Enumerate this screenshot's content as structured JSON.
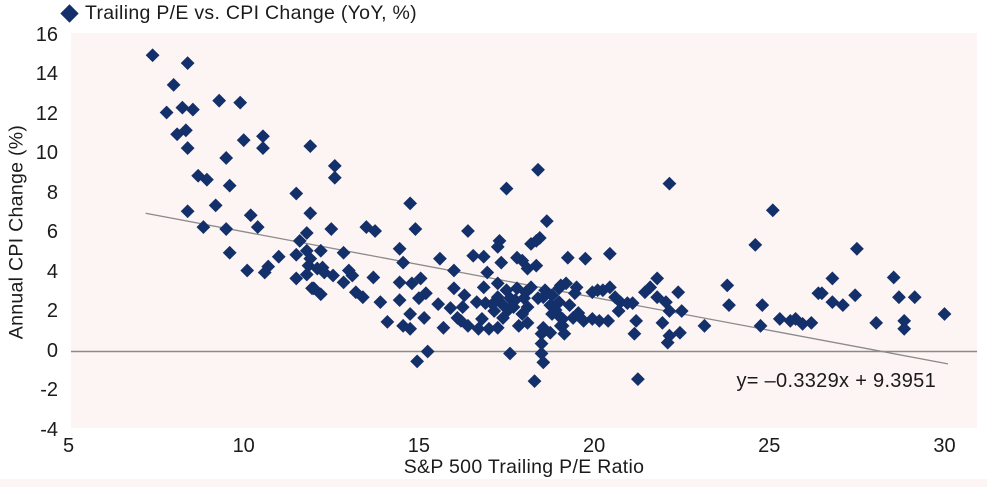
{
  "legend": {
    "label": "Trailing P/E vs. CPI Change (YoY, %)"
  },
  "colors": {
    "point": "#14306a",
    "plot_background": "#fdf5f3",
    "line_gray": "#8a8a8a",
    "text": "#1b1b1b"
  },
  "chart_data": {
    "type": "scatter",
    "title": "Trailing P/E vs. CPI Change (YoY, %)",
    "legend_position": "top-left",
    "grid": false,
    "x_axis": {
      "label": "S&P 500 Trailing P/E Ratio",
      "ticks": [
        5,
        10,
        15,
        20,
        25,
        30
      ],
      "range": [
        5,
        30
      ]
    },
    "y_axis": {
      "label": "Annual CPI Change (%)",
      "ticks": [
        16,
        14,
        12,
        10,
        8,
        6,
        4,
        2,
        0,
        -2,
        -4
      ],
      "range": [
        -4,
        16
      ]
    },
    "zero_line": true,
    "trendline": {
      "slope": -0.3329,
      "intercept": 9.3951,
      "x_start": 7.2,
      "x_end": 30.1,
      "equation_label": "y= –0.3329x + 9.3951"
    },
    "points": [
      [
        7.4,
        15.0
      ],
      [
        8.4,
        14.6
      ],
      [
        8.0,
        13.5
      ],
      [
        9.3,
        12.7
      ],
      [
        9.9,
        12.6
      ],
      [
        7.8,
        12.1
      ],
      [
        8.25,
        12.35
      ],
      [
        8.55,
        12.25
      ],
      [
        8.1,
        11.0
      ],
      [
        8.35,
        11.2
      ],
      [
        8.4,
        10.3
      ],
      [
        10.0,
        10.7
      ],
      [
        10.55,
        10.9
      ],
      [
        10.55,
        10.3
      ],
      [
        9.5,
        9.8
      ],
      [
        11.9,
        10.4
      ],
      [
        8.7,
        8.9
      ],
      [
        8.95,
        8.7
      ],
      [
        9.6,
        8.4
      ],
      [
        11.5,
        8.0
      ],
      [
        8.4,
        7.1
      ],
      [
        9.2,
        7.4
      ],
      [
        10.2,
        6.9
      ],
      [
        10.4,
        6.3
      ],
      [
        8.85,
        6.3
      ],
      [
        9.5,
        6.2
      ],
      [
        11.9,
        7.0
      ],
      [
        11.8,
        6.0
      ],
      [
        11.6,
        5.6
      ],
      [
        11.8,
        5.1
      ],
      [
        11.0,
        4.8
      ],
      [
        11.5,
        4.9
      ],
      [
        9.6,
        5.0
      ],
      [
        10.1,
        4.1
      ],
      [
        10.6,
        4.0
      ],
      [
        10.7,
        4.3
      ],
      [
        11.85,
        4.35
      ],
      [
        12.1,
        4.2
      ],
      [
        11.5,
        3.7
      ],
      [
        11.8,
        3.9
      ],
      [
        11.95,
        3.2
      ],
      [
        12.2,
        2.9
      ],
      [
        12.6,
        9.4
      ],
      [
        12.6,
        8.8
      ],
      [
        12.5,
        6.2
      ],
      [
        12.2,
        5.1
      ],
      [
        11.9,
        4.7
      ],
      [
        12.25,
        4.25
      ],
      [
        12.3,
        4.0
      ],
      [
        12.55,
        3.85
      ],
      [
        12.0,
        3.2
      ],
      [
        12.85,
        5.0
      ],
      [
        13.0,
        4.1
      ],
      [
        13.1,
        3.85
      ],
      [
        12.85,
        3.5
      ],
      [
        13.2,
        3.0
      ],
      [
        13.4,
        2.75
      ],
      [
        13.7,
        3.75
      ],
      [
        13.9,
        2.5
      ],
      [
        13.5,
        6.3
      ],
      [
        13.75,
        6.1
      ],
      [
        14.1,
        1.5
      ],
      [
        14.75,
        7.5
      ],
      [
        14.9,
        6.2
      ],
      [
        14.45,
        5.2
      ],
      [
        14.55,
        4.5
      ],
      [
        14.45,
        3.5
      ],
      [
        14.8,
        3.45
      ],
      [
        14.45,
        2.6
      ],
      [
        15.0,
        2.7
      ],
      [
        14.75,
        1.9
      ],
      [
        14.55,
        1.3
      ],
      [
        14.75,
        1.15
      ],
      [
        15.15,
        1.7
      ],
      [
        15.05,
        3.7
      ],
      [
        15.2,
        2.95
      ],
      [
        15.25,
        0.0
      ],
      [
        14.95,
        -0.5
      ],
      [
        15.6,
        4.7
      ],
      [
        15.55,
        2.4
      ],
      [
        15.7,
        1.2
      ],
      [
        15.9,
        2.2
      ],
      [
        16.0,
        4.1
      ],
      [
        16.0,
        3.2
      ],
      [
        16.1,
        1.7
      ],
      [
        16.2,
        1.55
      ],
      [
        16.25,
        2.25
      ],
      [
        16.3,
        2.85
      ],
      [
        16.4,
        1.3
      ],
      [
        16.55,
        4.85
      ],
      [
        16.65,
        2.5
      ],
      [
        16.7,
        1.15
      ],
      [
        16.85,
        4.8
      ],
      [
        16.85,
        3.25
      ],
      [
        16.95,
        4.0
      ],
      [
        16.9,
        2.45
      ],
      [
        16.8,
        1.65
      ],
      [
        17.1,
        2.4
      ],
      [
        17.0,
        1.15
      ],
      [
        17.25,
        5.3
      ],
      [
        17.3,
        5.6
      ],
      [
        17.25,
        3.45
      ],
      [
        17.35,
        4.5
      ],
      [
        17.25,
        2.75
      ],
      [
        17.15,
        2.05
      ],
      [
        17.25,
        1.2
      ],
      [
        17.4,
        2.35
      ],
      [
        17.4,
        1.7
      ],
      [
        17.5,
        3.1
      ],
      [
        17.55,
        2.1
      ],
      [
        17.6,
        2.7
      ],
      [
        17.6,
        -0.1
      ],
      [
        17.7,
        2.25
      ],
      [
        17.75,
        2.6
      ],
      [
        17.8,
        4.75
      ],
      [
        17.8,
        3.2
      ],
      [
        17.85,
        1.3
      ],
      [
        17.95,
        1.9
      ],
      [
        18.0,
        2.7
      ],
      [
        18.05,
        3.0
      ],
      [
        18.1,
        2.25
      ],
      [
        18.1,
        1.45
      ],
      [
        18.2,
        5.45
      ],
      [
        18.35,
        5.6
      ],
      [
        18.45,
        5.75
      ],
      [
        18.1,
        4.2
      ],
      [
        18.35,
        4.35
      ],
      [
        17.95,
        4.6
      ],
      [
        18.2,
        3.25
      ],
      [
        18.4,
        2.7
      ],
      [
        18.55,
        2.75
      ],
      [
        18.6,
        3.1
      ],
      [
        18.75,
        2.35
      ],
      [
        18.8,
        2.85
      ],
      [
        18.9,
        2.1
      ],
      [
        18.8,
        1.9
      ],
      [
        18.55,
        1.2
      ],
      [
        18.75,
        0.95
      ],
      [
        18.5,
        0.9
      ],
      [
        18.5,
        0.4
      ],
      [
        18.5,
        -0.1
      ],
      [
        18.55,
        -0.55
      ],
      [
        18.3,
        -1.5
      ],
      [
        18.4,
        9.2
      ],
      [
        18.65,
        6.6
      ],
      [
        17.5,
        8.25
      ],
      [
        16.4,
        6.1
      ],
      [
        19.0,
        2.5
      ],
      [
        19.1,
        1.65
      ],
      [
        19.05,
        3.35
      ],
      [
        19.2,
        3.45
      ],
      [
        19.0,
        3.2
      ],
      [
        19.25,
        4.75
      ],
      [
        19.45,
        2.95
      ],
      [
        19.4,
        1.7
      ],
      [
        19.05,
        1.3
      ],
      [
        19.75,
        4.7
      ],
      [
        20.45,
        4.95
      ],
      [
        19.5,
        3.25
      ],
      [
        19.95,
        3.0
      ],
      [
        20.1,
        3.1
      ],
      [
        20.25,
        3.1
      ],
      [
        20.45,
        3.25
      ],
      [
        20.6,
        2.75
      ],
      [
        20.75,
        2.5
      ],
      [
        20.95,
        2.45
      ],
      [
        21.1,
        2.45
      ],
      [
        19.3,
        2.35
      ],
      [
        19.55,
        1.95
      ],
      [
        19.0,
        1.8
      ],
      [
        19.1,
        1.3
      ],
      [
        19.15,
        0.9
      ],
      [
        19.7,
        1.55
      ],
      [
        19.95,
        1.65
      ],
      [
        20.15,
        1.55
      ],
      [
        20.4,
        1.55
      ],
      [
        20.7,
        2.05
      ],
      [
        21.2,
        1.55
      ],
      [
        21.15,
        0.9
      ],
      [
        21.45,
        3.0
      ],
      [
        21.6,
        3.25
      ],
      [
        21.8,
        3.7
      ],
      [
        21.8,
        2.75
      ],
      [
        22.05,
        2.5
      ],
      [
        22.15,
        2.05
      ],
      [
        21.95,
        1.45
      ],
      [
        22.1,
        0.45
      ],
      [
        22.4,
        3.0
      ],
      [
        22.5,
        2.05
      ],
      [
        22.45,
        0.95
      ],
      [
        22.15,
        0.8
      ],
      [
        21.25,
        -1.4
      ],
      [
        22.15,
        8.5
      ],
      [
        23.15,
        1.3
      ],
      [
        23.8,
        3.35
      ],
      [
        23.85,
        2.35
      ],
      [
        24.8,
        2.35
      ],
      [
        24.75,
        1.3
      ],
      [
        25.3,
        1.65
      ],
      [
        25.6,
        1.55
      ],
      [
        25.75,
        1.65
      ],
      [
        25.95,
        1.4
      ],
      [
        26.2,
        1.45
      ],
      [
        26.4,
        2.95
      ],
      [
        24.6,
        5.4
      ],
      [
        25.1,
        7.15
      ],
      [
        27.5,
        5.2
      ],
      [
        26.8,
        3.7
      ],
      [
        26.5,
        2.95
      ],
      [
        26.8,
        2.5
      ],
      [
        27.1,
        2.35
      ],
      [
        27.45,
        2.85
      ],
      [
        28.55,
        3.75
      ],
      [
        28.05,
        1.45
      ],
      [
        28.7,
        2.75
      ],
      [
        29.15,
        2.75
      ],
      [
        28.85,
        1.55
      ],
      [
        28.85,
        1.15
      ],
      [
        30.0,
        1.9
      ]
    ]
  }
}
